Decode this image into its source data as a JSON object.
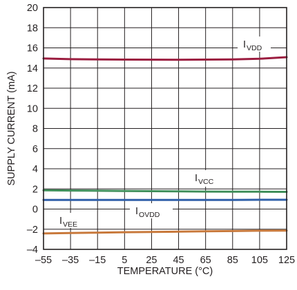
{
  "chart_data": {
    "type": "line",
    "xlabel": "TEMPERATURE (°C)",
    "ylabel": "SUPPLY CURRENT (mA)",
    "xlim": [
      -55,
      125
    ],
    "ylim": [
      -4,
      20
    ],
    "xticks": [
      -55,
      -35,
      -15,
      5,
      25,
      45,
      65,
      85,
      105,
      125
    ],
    "yticks": [
      -4,
      -2,
      0,
      2,
      4,
      6,
      8,
      10,
      12,
      14,
      16,
      18,
      20
    ],
    "xtick_labels": [
      "–55",
      "–35",
      "–15",
      "5",
      "25",
      "45",
      "65",
      "85",
      "105",
      "125"
    ],
    "ytick_labels": [
      "–4",
      "–2",
      "0",
      "2",
      "4",
      "6",
      "8",
      "10",
      "12",
      "14",
      "16",
      "18",
      "20"
    ],
    "grid": true,
    "legend": "none",
    "series": [
      {
        "name": "IVDD",
        "label_main": "I",
        "label_sub": "VDD",
        "color": "#9b1c3f",
        "x": [
          -55,
          -35,
          -15,
          5,
          25,
          45,
          65,
          85,
          105,
          125
        ],
        "y": [
          14.95,
          14.88,
          14.85,
          14.84,
          14.83,
          14.82,
          14.84,
          14.86,
          14.92,
          15.08
        ]
      },
      {
        "name": "IVCC",
        "label_main": "I",
        "label_sub": "VCC",
        "color": "#3f8f5a",
        "x": [
          -55,
          -35,
          -15,
          5,
          25,
          45,
          65,
          85,
          105,
          125
        ],
        "y": [
          1.86,
          1.84,
          1.82,
          1.8,
          1.78,
          1.76,
          1.74,
          1.73,
          1.72,
          1.71
        ]
      },
      {
        "name": "IOVDD",
        "label_main": "I",
        "label_sub": "OVDD",
        "color": "#2e5fa8",
        "x": [
          -55,
          -35,
          -15,
          5,
          25,
          45,
          65,
          85,
          105,
          125
        ],
        "y": [
          0.9,
          0.9,
          0.9,
          0.9,
          0.9,
          0.9,
          0.9,
          0.91,
          0.92,
          0.92
        ]
      },
      {
        "name": "IVEE",
        "label_main": "I",
        "label_sub": "VEE",
        "color": "#c8783a",
        "x": [
          -55,
          -35,
          -15,
          5,
          25,
          45,
          65,
          85,
          105,
          125
        ],
        "y": [
          -2.42,
          -2.38,
          -2.34,
          -2.3,
          -2.27,
          -2.24,
          -2.21,
          -2.18,
          -2.15,
          -2.13
        ]
      }
    ]
  }
}
